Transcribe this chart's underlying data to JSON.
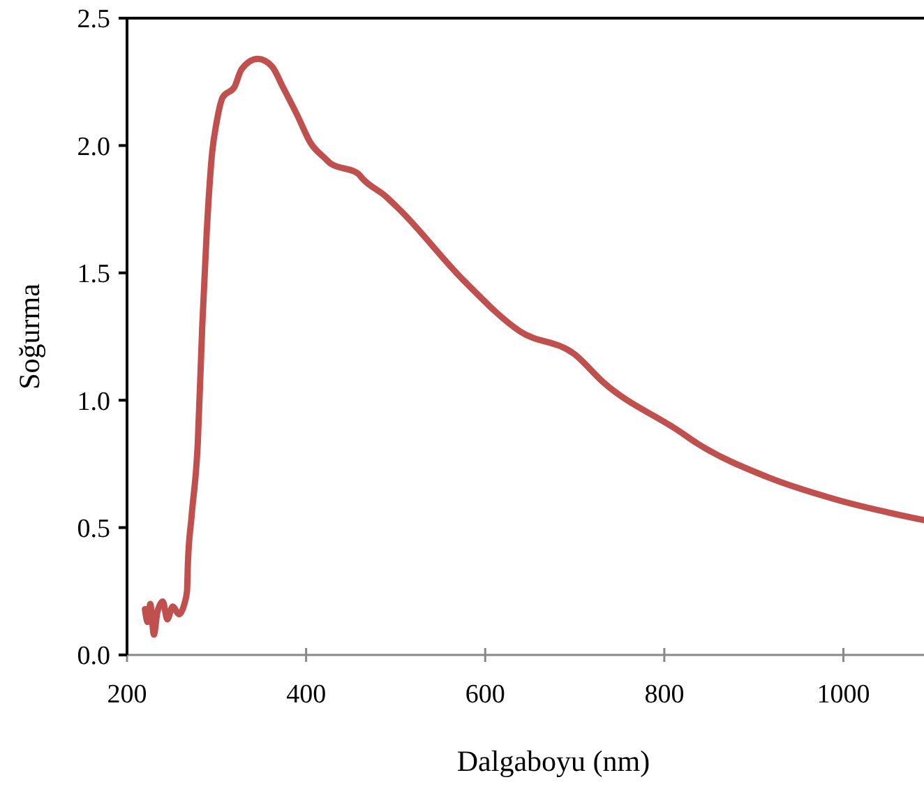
{
  "chart_data": {
    "type": "line",
    "xlabel": "Dalgaboyu (nm)",
    "ylabel": "Soğurma",
    "xlim": [
      200,
      1090
    ],
    "xticks": [
      200,
      400,
      600,
      800,
      1000
    ],
    "ylim": [
      0,
      2.5
    ],
    "yticks": [
      {
        "value": 0,
        "label": "0.0"
      },
      {
        "value": 0.5,
        "label": "0.5"
      },
      {
        "value": 1,
        "label": "1.0"
      },
      {
        "value": 1.5,
        "label": "1.5"
      },
      {
        "value": 2,
        "label": "2.0"
      },
      {
        "value": 2.5,
        "label": "2.5"
      }
    ],
    "grid": false,
    "marker": "none",
    "line_style": "solid",
    "series": [
      {
        "color": "#c0504d",
        "x": [
          220,
          223,
          226,
          230,
          234,
          240,
          245,
          251,
          258,
          264,
          267,
          268,
          272,
          279,
          284,
          289,
          295,
          300,
          307,
          320,
          328,
          346,
          362,
          374,
          390,
          405,
          421,
          427,
          458,
          463,
          489,
          504,
          576,
          639,
          700,
          732,
          816,
          837,
          914,
          992,
          1089
        ],
        "values": [
          0.18,
          0.13,
          0.2,
          0.08,
          0.17,
          0.21,
          0.14,
          0.19,
          0.16,
          0.2,
          0.25,
          0.36,
          0.54,
          0.83,
          1.29,
          1.66,
          1.97,
          2.09,
          2.19,
          2.23,
          2.3,
          2.34,
          2.31,
          2.23,
          2.12,
          2.01,
          1.95,
          1.93,
          1.89,
          1.87,
          1.8,
          1.75,
          1.47,
          1.27,
          1.18,
          1.07,
          0.88,
          0.83,
          0.7,
          0.61,
          0.53
        ]
      }
    ]
  }
}
